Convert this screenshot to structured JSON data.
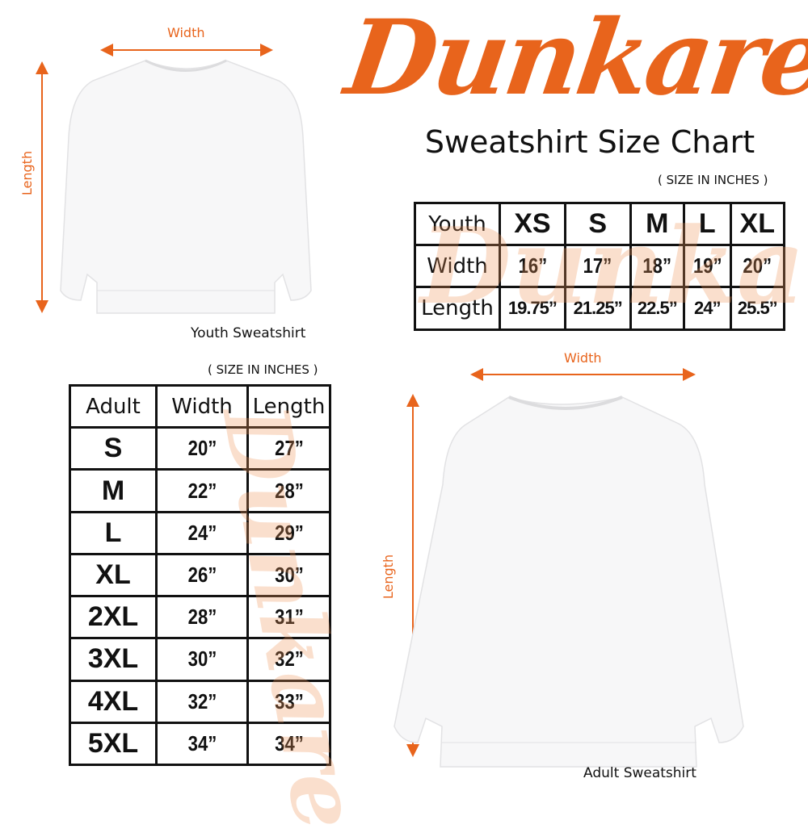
{
  "logo": {
    "text": "Dunkare",
    "color": "#e8641c"
  },
  "title": "Sweatshirt Size Chart",
  "youth": {
    "note": "( SIZE IN INCHES )",
    "caption": "Youth Sweatshirt",
    "width_label": "Width",
    "length_label": "Length",
    "table": {
      "corner": "Youth",
      "sizes": [
        "XS",
        "S",
        "M",
        "L",
        "XL"
      ],
      "rows": [
        {
          "label": "Width",
          "values": [
            "16”",
            "17”",
            "18”",
            "19”",
            "20”"
          ]
        },
        {
          "label": "Length",
          "values": [
            "19.75”",
            "21.25”",
            "22.5”",
            "24”",
            "25.5”"
          ]
        }
      ]
    }
  },
  "adult": {
    "note": "( SIZE IN INCHES )",
    "caption": "Adult Sweatshirt",
    "width_label": "Width",
    "length_label": "Length",
    "table": {
      "headers": [
        "Adult",
        "Width",
        "Length"
      ],
      "rows": [
        [
          "S",
          "20”",
          "27”"
        ],
        [
          "M",
          "22”",
          "28”"
        ],
        [
          "L",
          "24”",
          "29”"
        ],
        [
          "XL",
          "26”",
          "30”"
        ],
        [
          "2XL",
          "28”",
          "31”"
        ],
        [
          "3XL",
          "30”",
          "32”"
        ],
        [
          "4XL",
          "32”",
          "33”"
        ],
        [
          "5XL",
          "34”",
          "34”"
        ]
      ]
    }
  },
  "colors": {
    "accent": "#e8641c",
    "border": "#111111"
  }
}
